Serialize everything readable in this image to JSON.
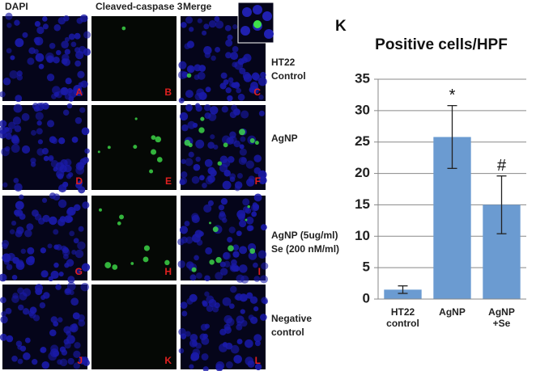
{
  "column_headers": [
    "DAPI",
    "Cleaved-caspase 3",
    "Merge"
  ],
  "row_labels": [
    [
      "HT22",
      "Control"
    ],
    [
      "AgNP"
    ],
    [
      "AgNP (5ug/ml)",
      "Se (200 nM/ml)"
    ],
    [
      "Negative",
      "control"
    ]
  ],
  "panel_letters": [
    "A",
    "B",
    "C",
    "D",
    "E",
    "F",
    "G",
    "H",
    "I",
    "J",
    "K",
    "L"
  ],
  "chart_data": {
    "type": "bar",
    "panel_label": "K",
    "title": "Positive cells/HPF",
    "categories": [
      "HT22\ncontrol",
      "AgNP",
      "AgNP\n+Se"
    ],
    "values": [
      1.5,
      25.8,
      15
    ],
    "errors": [
      0.6,
      5,
      4.6
    ],
    "color": "#6b9bd1",
    "annotations": [
      {
        "text": "*",
        "category": "AgNP"
      },
      {
        "text": "#",
        "category": "AgNP\n+Se"
      }
    ],
    "ylim": [
      0,
      35
    ],
    "yticks": [
      0,
      5,
      10,
      15,
      20,
      25,
      30,
      35
    ],
    "grid": true
  }
}
